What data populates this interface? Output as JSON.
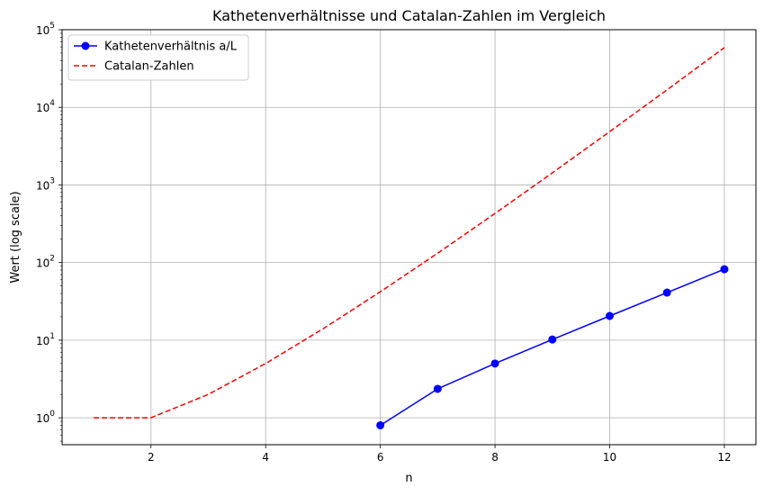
{
  "chart_data": {
    "type": "line",
    "title": "Kathetenverhältnisse und Catalan-Zahlen im Vergleich",
    "xlabel": "n",
    "ylabel": "Wert (log scale)",
    "xscale": "linear",
    "yscale": "log",
    "xlim": [
      0.45,
      12.55
    ],
    "ylim": [
      0.45,
      100000
    ],
    "grid": true,
    "legend_position": "top-left",
    "x_ticks": [
      2,
      4,
      6,
      8,
      10,
      12
    ],
    "y_ticks": [
      1,
      10,
      100,
      1000,
      10000,
      100000
    ],
    "y_tick_labels": [
      {
        "base": "10",
        "exp": "0"
      },
      {
        "base": "10",
        "exp": "1"
      },
      {
        "base": "10",
        "exp": "2"
      },
      {
        "base": "10",
        "exp": "3"
      },
      {
        "base": "10",
        "exp": "4"
      },
      {
        "base": "10",
        "exp": "5"
      }
    ],
    "series": [
      {
        "name": "Kathetenverhältnis a/L",
        "color": "#0000ff",
        "style": "solid",
        "marker": "circle",
        "x": [
          6,
          7,
          8,
          9,
          10,
          11,
          12
        ],
        "y": [
          0.8,
          2.36,
          5,
          10.2,
          20.5,
          41,
          82
        ]
      },
      {
        "name": "Catalan-Zahlen",
        "color": "#ff0000",
        "style": "dashed",
        "marker": "none",
        "x": [
          1,
          2,
          3,
          4,
          5,
          6,
          7,
          8,
          9,
          10,
          11,
          12
        ],
        "y": [
          1,
          1,
          2,
          5,
          14,
          42,
          132,
          429,
          1430,
          4862,
          16796,
          58786
        ]
      }
    ]
  }
}
